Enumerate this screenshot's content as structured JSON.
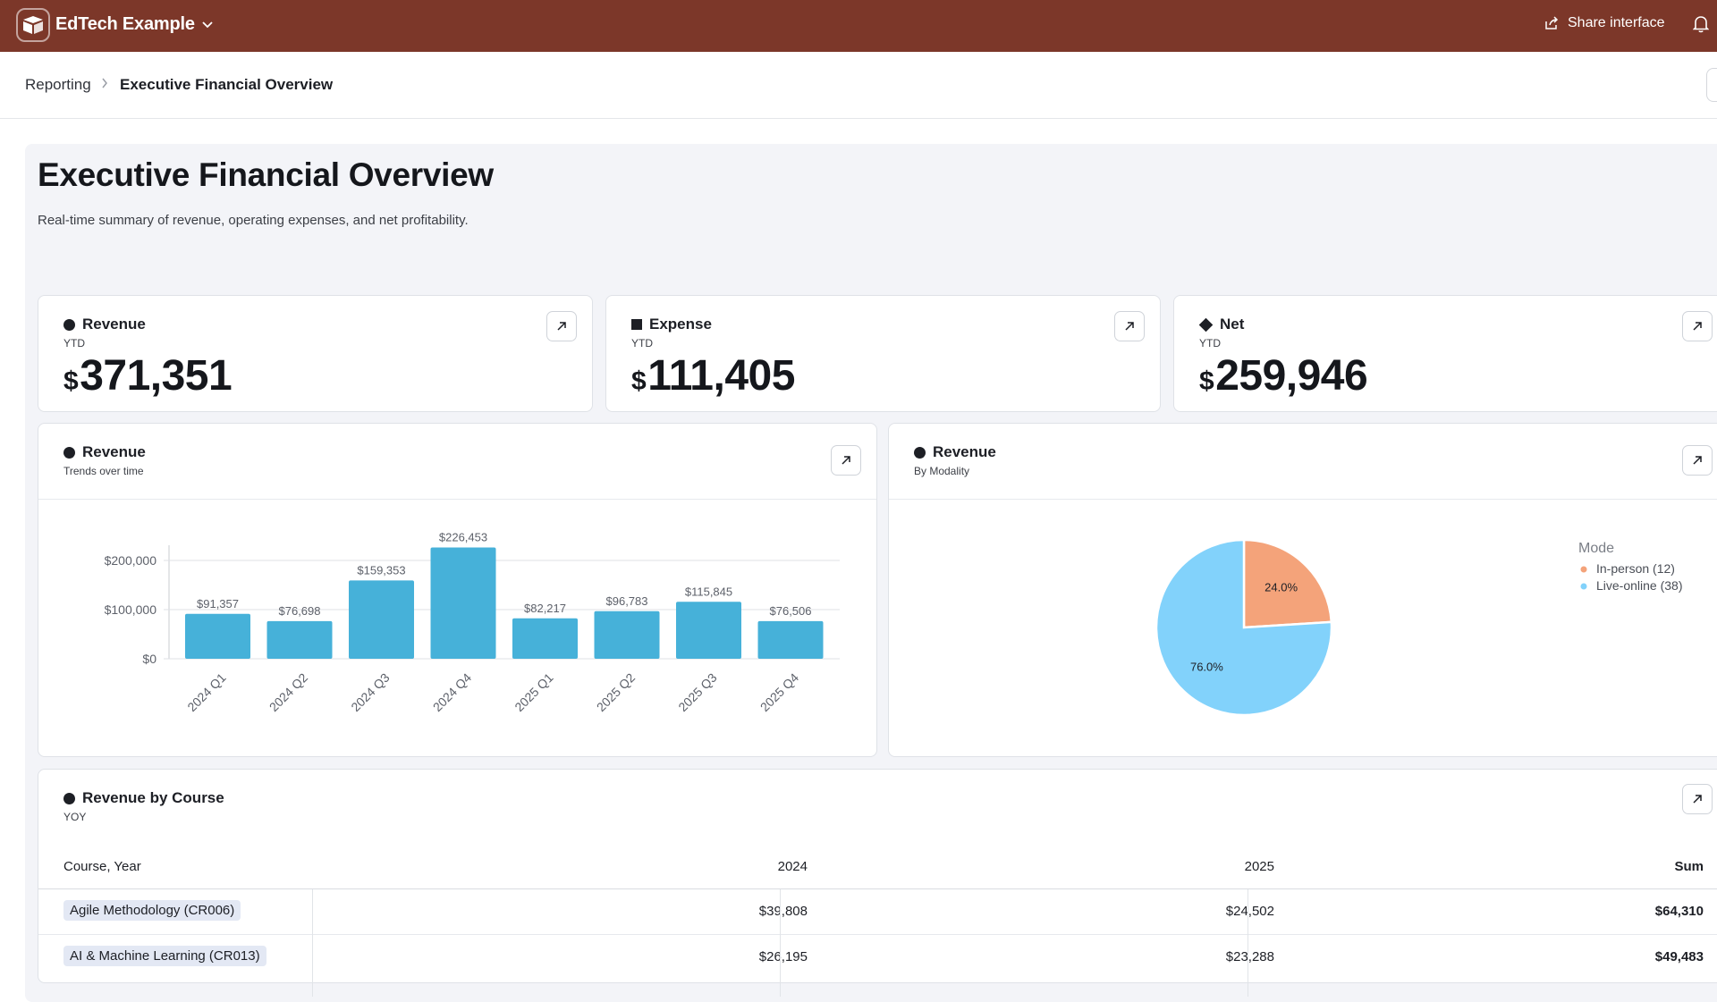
{
  "app": {
    "name": "EdTech Example",
    "share_label": "Share interface"
  },
  "breadcrumb": {
    "parent": "Reporting",
    "current": "Executive Financial Overview"
  },
  "page": {
    "title": "Executive Financial Overview",
    "subtitle": "Real-time summary of revenue, operating expenses, and net profitability."
  },
  "kpis": [
    {
      "title": "Revenue",
      "subtitle": "YTD",
      "currency": "$",
      "value": "371,351",
      "marker": "circle"
    },
    {
      "title": "Expense",
      "subtitle": "YTD",
      "currency": "$",
      "value": "111,405",
      "marker": "square"
    },
    {
      "title": "Net",
      "subtitle": "YTD",
      "currency": "$",
      "value": "259,946",
      "marker": "diamond"
    }
  ],
  "bar_card": {
    "title": "Revenue",
    "subtitle": "Trends over time"
  },
  "pie_card": {
    "title": "Revenue",
    "subtitle": "By Modality"
  },
  "table_card": {
    "title": "Revenue by Course",
    "subtitle": "YOY"
  },
  "chart_data": [
    {
      "type": "bar",
      "categories": [
        "2024 Q1",
        "2024 Q2",
        "2024 Q3",
        "2024 Q4",
        "2025 Q1",
        "2025 Q2",
        "2025 Q3",
        "2025 Q4"
      ],
      "values": [
        91357,
        76698,
        159353,
        226453,
        82217,
        96783,
        115845,
        76506
      ],
      "value_labels": [
        "$91,357",
        "$76,698",
        "$159,353",
        "$226,453",
        "$82,217",
        "$96,783",
        "$115,845",
        "$76,506"
      ],
      "y_ticks": [
        0,
        100000,
        200000
      ],
      "y_tick_labels": [
        "$0",
        "$100,000",
        "$200,000"
      ],
      "ylim": [
        0,
        240000
      ],
      "grid": true,
      "color": "#46b1d9"
    },
    {
      "type": "pie",
      "legend_title": "Mode",
      "legend_position": "right",
      "slices": [
        {
          "label": "In-person (12)",
          "value": 24.0,
          "value_label": "24.0%",
          "color": "#f4a37a"
        },
        {
          "label": "Live-online (38)",
          "value": 76.0,
          "value_label": "76.0%",
          "color": "#82d2fb"
        }
      ]
    }
  ],
  "table": {
    "columns": [
      "Course, Year",
      "2024",
      "2025",
      "Sum"
    ],
    "rows": [
      {
        "course": "Agile Methodology (CR006)",
        "y2024": "$39,808",
        "y2025": "$24,502",
        "sum": "$64,310"
      },
      {
        "course": "AI & Machine Learning (CR013)",
        "y2024": "$26,195",
        "y2025": "$23,288",
        "sum": "$49,483"
      }
    ]
  },
  "colors": {
    "topbar": "#7c3729",
    "canvas": "#f3f4f8",
    "bar": "#46b1d9"
  }
}
